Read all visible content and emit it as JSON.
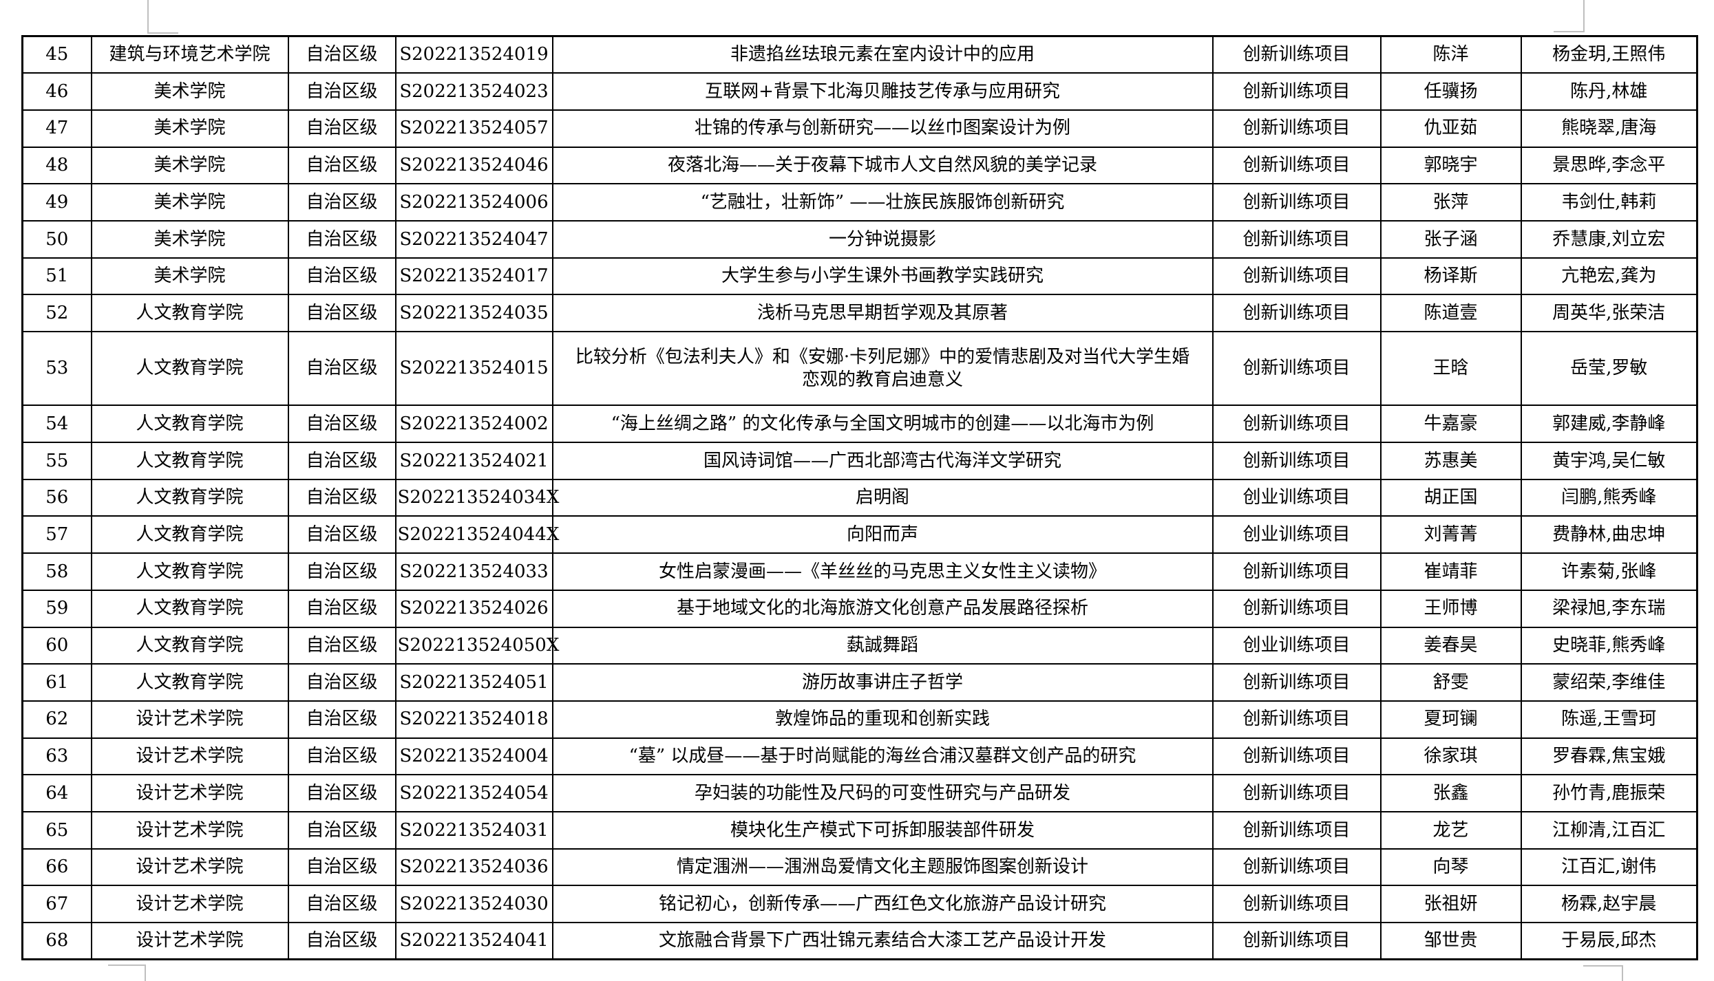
{
  "page": {
    "background_color": "#ffffff",
    "table_border_color": "#000000",
    "text_color": "#000000",
    "boundary_mark_color": "#bfbfbf"
  },
  "table": {
    "rows": [
      {
        "no": "45",
        "college": "建筑与环境艺术学院",
        "level": "自治区级",
        "code": "S202213524019",
        "title": "非遗掐丝珐琅元素在室内设计中的应用",
        "type": "创新训练项目",
        "leader": "陈洋",
        "members": "杨金玥,王照伟"
      },
      {
        "no": "46",
        "college": "美术学院",
        "level": "自治区级",
        "code": "S202213524023",
        "title": "互联网+背景下北海贝雕技艺传承与应用研究",
        "type": "创新训练项目",
        "leader": "任骥扬",
        "members": "陈丹,林雄"
      },
      {
        "no": "47",
        "college": "美术学院",
        "level": "自治区级",
        "code": "S202213524057",
        "title": "壮锦的传承与创新研究——以丝巾图案设计为例",
        "type": "创新训练项目",
        "leader": "仇亚茹",
        "members": "熊晓翠,唐海"
      },
      {
        "no": "48",
        "college": "美术学院",
        "level": "自治区级",
        "code": "S202213524046",
        "title": "夜落北海——关于夜幕下城市人文自然风貌的美学记录",
        "type": "创新训练项目",
        "leader": "郭晓宇",
        "members": "景思晔,李念平"
      },
      {
        "no": "49",
        "college": "美术学院",
        "level": "自治区级",
        "code": "S202213524006",
        "title": "“艺融壮，壮新饰” ——壮族民族服饰创新研究",
        "type": "创新训练项目",
        "leader": "张萍",
        "members": "韦剑仕,韩莉"
      },
      {
        "no": "50",
        "college": "美术学院",
        "level": "自治区级",
        "code": "S202213524047",
        "title": "一分钟说摄影",
        "type": "创新训练项目",
        "leader": "张子涵",
        "members": "乔慧康,刘立宏"
      },
      {
        "no": "51",
        "college": "美术学院",
        "level": "自治区级",
        "code": "S202213524017",
        "title": "大学生参与小学生课外书画教学实践研究",
        "type": "创新训练项目",
        "leader": "杨译斯",
        "members": "亢艳宏,龚为"
      },
      {
        "no": "52",
        "college": "人文教育学院",
        "level": "自治区级",
        "code": "S202213524035",
        "title": "浅析马克思早期哲学观及其原著",
        "type": "创新训练项目",
        "leader": "陈道壹",
        "members": "周英华,张荣洁"
      },
      {
        "no": "53",
        "college": "人文教育学院",
        "level": "自治区级",
        "code": "S202213524015",
        "title": "比较分析《包法利夫人》和《安娜·卡列尼娜》中的爱情悲剧及对当代大学生婚\n恋观的教育启迪意义",
        "type": "创新训练项目",
        "leader": "王晗",
        "members": "岳莹,罗敏",
        "tall": true
      },
      {
        "no": "54",
        "college": "人文教育学院",
        "level": "自治区级",
        "code": "S202213524002",
        "title": "“海上丝绸之路” 的文化传承与全国文明城市的创建——以北海市为例",
        "type": "创新训练项目",
        "leader": "牛嘉豪",
        "members": "郭建威,李静峰"
      },
      {
        "no": "55",
        "college": "人文教育学院",
        "level": "自治区级",
        "code": "S202213524021",
        "title": "国风诗词馆——广西北部湾古代海洋文学研究",
        "type": "创新训练项目",
        "leader": "苏惠美",
        "members": "黄宇鸿,吴仁敏"
      },
      {
        "no": "56",
        "college": "人文教育学院",
        "level": "自治区级",
        "code": "S202213524034X",
        "title": "启明阁",
        "type": "创业训练项目",
        "leader": "胡正国",
        "members": "闫鹏,熊秀峰"
      },
      {
        "no": "57",
        "college": "人文教育学院",
        "level": "自治区级",
        "code": "S202213524044X",
        "title": "向阳而声",
        "type": "创业训练项目",
        "leader": "刘菁菁",
        "members": "费静林,曲忠坤"
      },
      {
        "no": "58",
        "college": "人文教育学院",
        "level": "自治区级",
        "code": "S202213524033",
        "title": "女性启蒙漫画——《羊丝丝的马克思主义女性主义读物》",
        "type": "创新训练项目",
        "leader": "崔靖菲",
        "members": "许素菊,张峰"
      },
      {
        "no": "59",
        "college": "人文教育学院",
        "level": "自治区级",
        "code": "S202213524026",
        "title": "基于地域文化的北海旅游文化创意产品发展路径探析",
        "type": "创新训练项目",
        "leader": "王师博",
        "members": "梁禄旭,李东瑞"
      },
      {
        "no": "60",
        "college": "人文教育学院",
        "level": "自治区级",
        "code": "S202213524050X",
        "title": "蓺誠舞蹈",
        "type": "创业训练项目",
        "leader": "姜春昊",
        "members": "史晓菲,熊秀峰"
      },
      {
        "no": "61",
        "college": "人文教育学院",
        "level": "自治区级",
        "code": "S202213524051",
        "title": "游历故事讲庄子哲学",
        "type": "创新训练项目",
        "leader": "舒雯",
        "members": "蒙绍荣,李维佳"
      },
      {
        "no": "62",
        "college": "设计艺术学院",
        "level": "自治区级",
        "code": "S202213524018",
        "title": "敦煌饰品的重现和创新实践",
        "type": "创新训练项目",
        "leader": "夏珂镧",
        "members": "陈遥,王雪珂"
      },
      {
        "no": "63",
        "college": "设计艺术学院",
        "level": "自治区级",
        "code": "S202213524004",
        "title": "“墓” 以成昼——基于时尚赋能的海丝合浦汉墓群文创产品的研究",
        "type": "创新训练项目",
        "leader": "徐家琪",
        "members": "罗春霖,焦宝娥"
      },
      {
        "no": "64",
        "college": "设计艺术学院",
        "level": "自治区级",
        "code": "S202213524054",
        "title": "孕妇装的功能性及尺码的可变性研究与产品研发",
        "type": "创新训练项目",
        "leader": "张鑫",
        "members": "孙竹青,鹿振荣"
      },
      {
        "no": "65",
        "college": "设计艺术学院",
        "level": "自治区级",
        "code": "S202213524031",
        "title": "模块化生产模式下可拆卸服装部件研发",
        "type": "创新训练项目",
        "leader": "龙艺",
        "members": "江柳清,江百汇"
      },
      {
        "no": "66",
        "college": "设计艺术学院",
        "level": "自治区级",
        "code": "S202213524036",
        "title": "情定涠洲——涠洲岛爱情文化主题服饰图案创新设计",
        "type": "创新训练项目",
        "leader": "向琴",
        "members": "江百汇,谢伟"
      },
      {
        "no": "67",
        "college": "设计艺术学院",
        "level": "自治区级",
        "code": "S202213524030",
        "title": "铭记初心，创新传承——广西红色文化旅游产品设计研究",
        "type": "创新训练项目",
        "leader": "张祖妍",
        "members": "杨霖,赵宇晨"
      },
      {
        "no": "68",
        "college": "设计艺术学院",
        "level": "自治区级",
        "code": "S202213524041",
        "title": "文旅融合背景下广西壮锦元素结合大漆工艺产品设计开发",
        "type": "创新训练项目",
        "leader": "邹世贵",
        "members": "于易辰,邱杰"
      }
    ]
  }
}
